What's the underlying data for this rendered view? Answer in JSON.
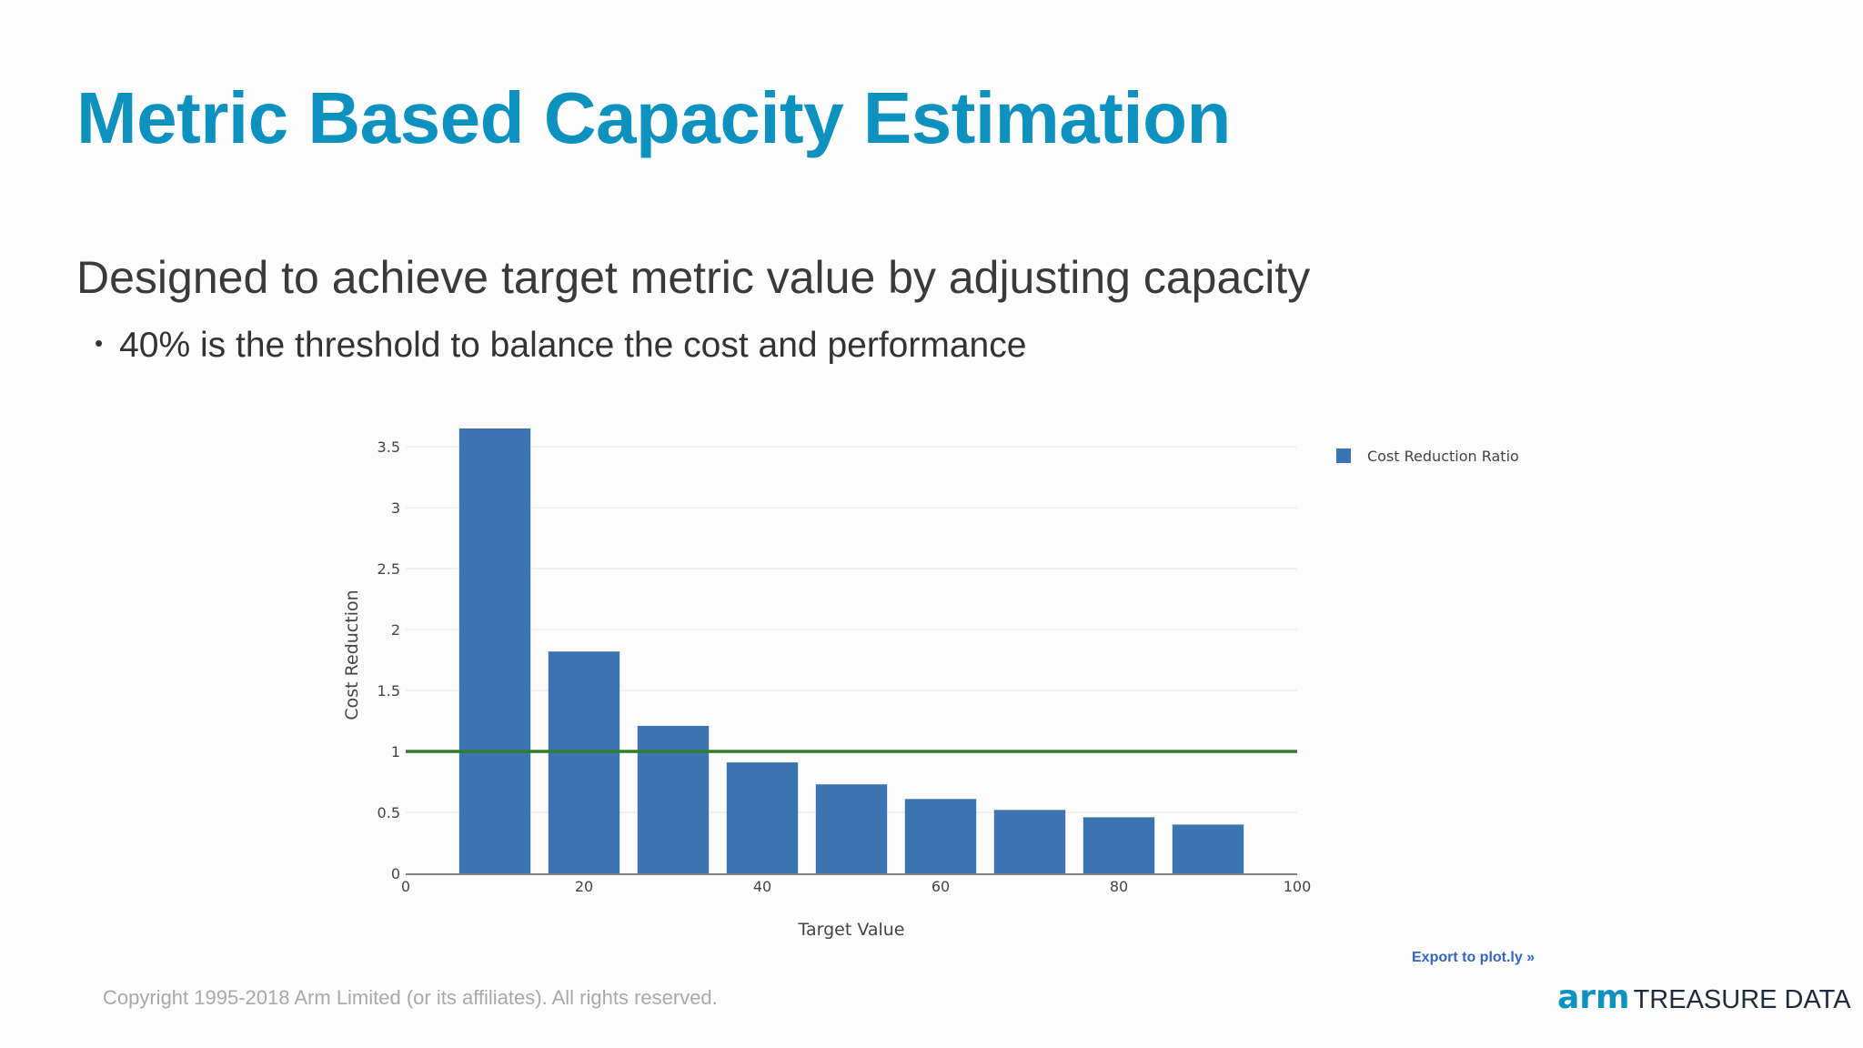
{
  "slide": {
    "title": "Metric Based Capacity Estimation",
    "subtitle": "Designed to achieve target metric value by adjusting capacity",
    "bullet": "40% is the threshold to balance the cost and performance",
    "export_label": "Export to plot.ly »",
    "copyright": "Copyright 1995-2018 Arm Limited (or its affiliates). All rights reserved.",
    "logo_primary": "arm",
    "logo_secondary": "TREASURE DATA"
  },
  "colors": {
    "title": "#0d91bf",
    "bar": "#3b74b0",
    "threshold_line": "#2e7d2a",
    "grid": "#eeeeee",
    "axis_text": "#444444"
  },
  "chart_data": {
    "type": "bar",
    "xlabel": "Target Value",
    "ylabel": "Cost Reduction",
    "xlim": [
      0,
      100
    ],
    "ylim": [
      0,
      3.65
    ],
    "x_ticks": [
      0,
      20,
      40,
      60,
      80,
      100
    ],
    "y_ticks": [
      0,
      0.5,
      1,
      1.5,
      2,
      2.5,
      3,
      3.5
    ],
    "x_tick_labels": [
      "0",
      "20",
      "40",
      "60",
      "80",
      "100"
    ],
    "y_tick_labels": [
      "0",
      "0.5",
      "1",
      "1.5",
      "2",
      "2.5",
      "3",
      "3.5"
    ],
    "bar_width": 8,
    "grid": true,
    "legend_position": "top-right",
    "series": [
      {
        "name": "Cost Reduction Ratio",
        "x": [
          10,
          20,
          30,
          40,
          50,
          60,
          70,
          80,
          90
        ],
        "values": [
          3.65,
          1.82,
          1.21,
          0.91,
          0.73,
          0.61,
          0.52,
          0.46,
          0.4
        ]
      }
    ],
    "reference_line": {
      "y": 1,
      "x_start": 0,
      "x_end": 100
    }
  }
}
